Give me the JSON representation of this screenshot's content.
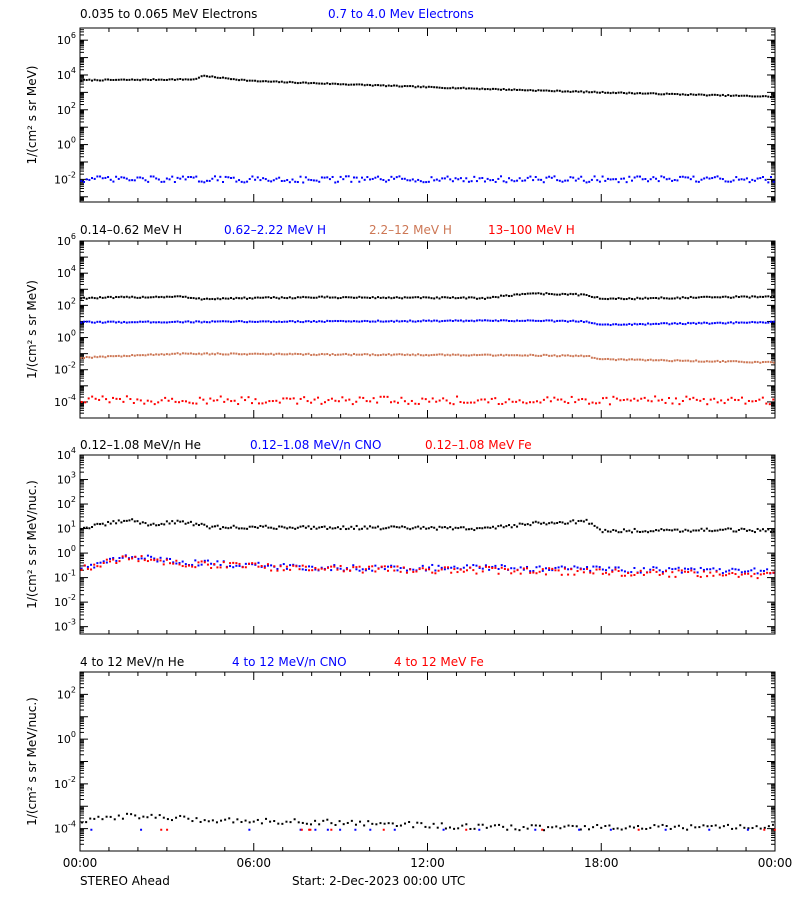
{
  "xaxis": {
    "ticks": [
      "00:00",
      "06:00",
      "12:00",
      "18:00",
      "00:00"
    ],
    "range_hours": [
      0,
      24
    ],
    "minor_step_hours": 1
  },
  "footer": {
    "spacecraft": "STEREO Ahead",
    "start": "Start:  2-Dec-2023 00:00 UTC"
  },
  "colors": {
    "black": "#000000",
    "blue": "#0000ff",
    "salmon": "#cd7755",
    "red": "#ff0000"
  },
  "chart_data": [
    {
      "type": "scatter",
      "ylabel": "1/(cm² s sr MeV)",
      "ylog": true,
      "ylim_exp": [
        -3.3,
        6.7
      ],
      "ytick_exps": [
        -2,
        0,
        2,
        4,
        6
      ],
      "series": [
        {
          "name": "0.035 to 0.065 MeV Electrons",
          "color": "#000000",
          "profile_hours": [
            0,
            4,
            4.2,
            6,
            12,
            18,
            24
          ],
          "profile_log": [
            3.7,
            3.75,
            3.95,
            3.65,
            3.3,
            3.0,
            2.75
          ],
          "jitter": 0.03,
          "points": 260
        },
        {
          "name": "0.7 to 4.0 Mev Electrons",
          "color": "#0000ff",
          "profile_hours": [
            0,
            24
          ],
          "profile_log": [
            -2.0,
            -2.0
          ],
          "jitter": 0.18,
          "points": 260
        }
      ]
    },
    {
      "type": "scatter",
      "ylabel": "1/(cm² s sr MeV)",
      "ylog": true,
      "ylim_exp": [
        -5,
        6
      ],
      "ytick_exps": [
        -4,
        -2,
        0,
        2,
        4,
        6
      ],
      "series": [
        {
          "name": "0.14–0.62 MeV H",
          "color": "#000000",
          "profile_hours": [
            0,
            3.5,
            4,
            8,
            14,
            15.5,
            17.5,
            18,
            24
          ],
          "profile_log": [
            2.45,
            2.55,
            2.4,
            2.5,
            2.45,
            2.75,
            2.65,
            2.4,
            2.55
          ],
          "jitter": 0.05,
          "points": 260
        },
        {
          "name": "0.62–2.22 MeV H",
          "color": "#0000ff",
          "profile_hours": [
            0,
            8,
            15.5,
            17.5,
            18,
            24
          ],
          "profile_log": [
            0.95,
            1.0,
            1.05,
            1.0,
            0.8,
            0.95
          ],
          "jitter": 0.04,
          "points": 260
        },
        {
          "name": "2.2–12 MeV H",
          "color": "#cd7755",
          "profile_hours": [
            0,
            3.5,
            8,
            15.5,
            17.5,
            18,
            24
          ],
          "profile_log": [
            -1.25,
            -1.0,
            -1.05,
            -1.1,
            -1.15,
            -1.35,
            -1.55
          ],
          "jitter": 0.04,
          "points": 260
        },
        {
          "name": "13–100 MeV H",
          "color": "#ff0000",
          "profile_hours": [
            0,
            24
          ],
          "profile_log": [
            -3.9,
            -3.9
          ],
          "jitter": 0.25,
          "points": 200
        }
      ]
    },
    {
      "type": "scatter",
      "ylabel": "1/(cm² s sr MeV/nuc.)",
      "ylog": true,
      "ylim_exp": [
        -3.3,
        4
      ],
      "ytick_exps": [
        -3,
        -2,
        -1,
        0,
        1,
        2,
        3,
        4
      ],
      "series": [
        {
          "name": "0.12–1.08 MeV/n He",
          "color": "#000000",
          "profile_hours": [
            0,
            1.7,
            2.5,
            3.5,
            4.5,
            8,
            14,
            15.5,
            17.5,
            18,
            22,
            24
          ],
          "profile_log": [
            1.0,
            1.35,
            1.15,
            1.3,
            1.05,
            1.05,
            1.0,
            1.2,
            1.3,
            0.9,
            0.95,
            0.9
          ],
          "jitter": 0.07,
          "points": 260
        },
        {
          "name": "0.12–1.08 MeV/n CNO",
          "color": "#0000ff",
          "profile_hours": [
            0,
            1.7,
            4,
            8,
            14,
            24
          ],
          "profile_log": [
            -0.6,
            -0.15,
            -0.4,
            -0.6,
            -0.6,
            -0.75
          ],
          "jitter": 0.12,
          "points": 220
        },
        {
          "name": "0.12–1.08 MeV Fe",
          "color": "#ff0000",
          "profile_hours": [
            0,
            1.7,
            4,
            8,
            14,
            24
          ],
          "profile_log": [
            -0.65,
            -0.2,
            -0.45,
            -0.65,
            -0.7,
            -0.9
          ],
          "jitter": 0.14,
          "points": 220
        }
      ]
    },
    {
      "type": "scatter",
      "ylabel": "1/(cm² s sr MeV/nuc.)",
      "ylog": true,
      "ylim_exp": [
        -5,
        3
      ],
      "ytick_exps": [
        -4,
        -2,
        0,
        2
      ],
      "series": [
        {
          "name": "4 to 12 MeV/n He",
          "color": "#000000",
          "profile_hours": [
            0,
            1.7,
            4,
            10,
            14,
            24
          ],
          "profile_log": [
            -3.7,
            -3.4,
            -3.6,
            -3.75,
            -3.95,
            -3.95
          ],
          "jitter": 0.12,
          "points": 170
        },
        {
          "name": "4 to 12 MeV/n CNO",
          "color": "#0000ff",
          "profile_hours": [
            0,
            24
          ],
          "profile_log": [
            -4.05,
            -4.05
          ],
          "jitter": 0.0,
          "points": 18
        },
        {
          "name": "4 to 12 MeV Fe",
          "color": "#ff0000",
          "profile_hours": [
            0,
            24
          ],
          "profile_log": [
            -4.05,
            -4.05
          ],
          "jitter": 0.0,
          "points": 12
        }
      ]
    }
  ]
}
